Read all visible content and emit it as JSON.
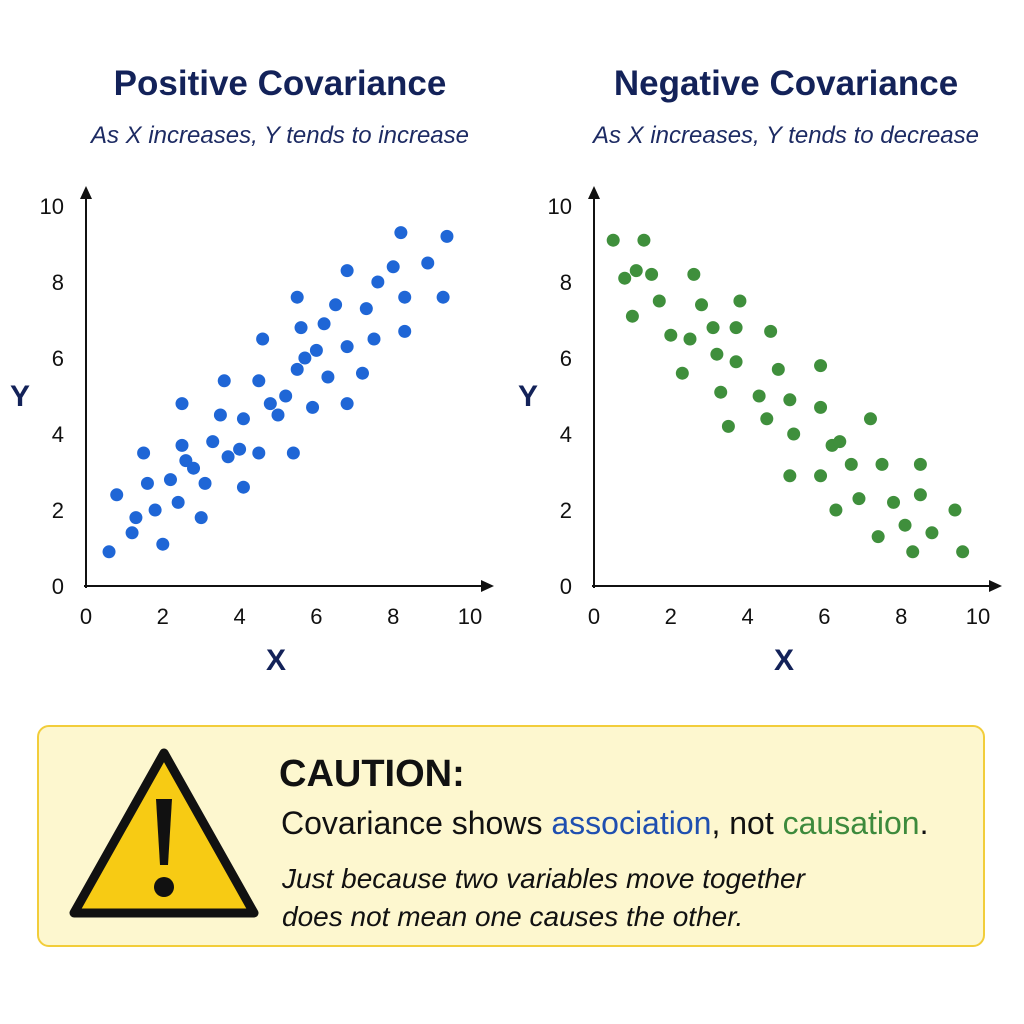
{
  "chart_data": [
    {
      "type": "scatter",
      "title": "Positive Covariance",
      "subtitle": "As X increases, Y tends to increase",
      "xlabel": "X",
      "ylabel": "Y",
      "xlim": [
        0,
        10
      ],
      "ylim": [
        0,
        10
      ],
      "xticks": [
        "0",
        "2",
        "4",
        "6",
        "8",
        "10"
      ],
      "yticks": [
        "0",
        "2",
        "4",
        "6",
        "8",
        "10"
      ],
      "color": "#1f66d6",
      "grid": false,
      "points": [
        [
          0.6,
          0.9
        ],
        [
          0.8,
          2.4
        ],
        [
          1.2,
          1.4
        ],
        [
          1.3,
          1.8
        ],
        [
          1.5,
          3.5
        ],
        [
          1.6,
          2.7
        ],
        [
          1.8,
          2.0
        ],
        [
          2.0,
          1.1
        ],
        [
          2.2,
          2.8
        ],
        [
          2.4,
          2.2
        ],
        [
          2.5,
          4.8
        ],
        [
          2.5,
          3.7
        ],
        [
          2.6,
          3.3
        ],
        [
          2.8,
          3.1
        ],
        [
          3.0,
          1.8
        ],
        [
          3.1,
          2.7
        ],
        [
          3.3,
          3.8
        ],
        [
          3.5,
          4.5
        ],
        [
          3.6,
          5.4
        ],
        [
          3.7,
          3.4
        ],
        [
          4.0,
          3.6
        ],
        [
          4.1,
          4.4
        ],
        [
          4.1,
          2.6
        ],
        [
          4.5,
          5.4
        ],
        [
          4.5,
          3.5
        ],
        [
          4.6,
          6.5
        ],
        [
          4.8,
          4.8
        ],
        [
          5.0,
          4.5
        ],
        [
          5.2,
          5.0
        ],
        [
          5.4,
          3.5
        ],
        [
          5.5,
          7.6
        ],
        [
          5.5,
          5.7
        ],
        [
          5.6,
          6.8
        ],
        [
          5.7,
          6.0
        ],
        [
          5.9,
          4.7
        ],
        [
          6.0,
          6.2
        ],
        [
          6.2,
          6.9
        ],
        [
          6.3,
          5.5
        ],
        [
          6.5,
          7.4
        ],
        [
          6.8,
          8.3
        ],
        [
          6.8,
          6.3
        ],
        [
          6.8,
          4.8
        ],
        [
          7.2,
          5.6
        ],
        [
          7.3,
          7.3
        ],
        [
          7.5,
          6.5
        ],
        [
          7.6,
          8.0
        ],
        [
          8.0,
          8.4
        ],
        [
          8.2,
          9.3
        ],
        [
          8.3,
          6.7
        ],
        [
          8.3,
          7.6
        ],
        [
          8.9,
          8.5
        ],
        [
          9.3,
          7.6
        ],
        [
          9.4,
          9.2
        ]
      ]
    },
    {
      "type": "scatter",
      "title": "Negative Covariance",
      "subtitle": "As X increases, Y tends to decrease",
      "xlabel": "X",
      "ylabel": "Y",
      "xlim": [
        0,
        10
      ],
      "ylim": [
        0,
        10
      ],
      "xticks": [
        "0",
        "2",
        "4",
        "6",
        "8",
        "10"
      ],
      "yticks": [
        "0",
        "2",
        "4",
        "6",
        "8",
        "10"
      ],
      "color": "#3f8f3c",
      "grid": false,
      "points": [
        [
          0.5,
          9.1
        ],
        [
          0.8,
          8.1
        ],
        [
          1.0,
          7.1
        ],
        [
          1.1,
          8.3
        ],
        [
          1.3,
          9.1
        ],
        [
          1.5,
          8.2
        ],
        [
          1.7,
          7.5
        ],
        [
          2.0,
          6.6
        ],
        [
          2.3,
          5.6
        ],
        [
          2.5,
          6.5
        ],
        [
          2.6,
          8.2
        ],
        [
          2.8,
          7.4
        ],
        [
          3.1,
          6.8
        ],
        [
          3.2,
          6.1
        ],
        [
          3.3,
          5.1
        ],
        [
          3.5,
          4.2
        ],
        [
          3.7,
          6.8
        ],
        [
          3.7,
          5.9
        ],
        [
          3.8,
          7.5
        ],
        [
          4.3,
          5.0
        ],
        [
          4.5,
          4.4
        ],
        [
          4.6,
          6.7
        ],
        [
          4.8,
          5.7
        ],
        [
          5.1,
          4.9
        ],
        [
          5.1,
          2.9
        ],
        [
          5.2,
          4.0
        ],
        [
          5.9,
          5.8
        ],
        [
          5.9,
          4.7
        ],
        [
          5.9,
          2.9
        ],
        [
          6.2,
          3.7
        ],
        [
          6.3,
          2.0
        ],
        [
          6.4,
          3.8
        ],
        [
          6.7,
          3.2
        ],
        [
          6.9,
          2.3
        ],
        [
          7.2,
          4.4
        ],
        [
          7.4,
          1.3
        ],
        [
          7.5,
          3.2
        ],
        [
          7.8,
          2.2
        ],
        [
          8.1,
          1.6
        ],
        [
          8.3,
          0.9
        ],
        [
          8.5,
          3.2
        ],
        [
          8.5,
          2.4
        ],
        [
          8.8,
          1.4
        ],
        [
          9.4,
          2.0
        ],
        [
          9.6,
          0.9
        ]
      ]
    }
  ],
  "caution": {
    "title": "CAUTION:",
    "line_prefix": "Covariance shows ",
    "keyword_1": "association",
    "line_mid": ", not ",
    "keyword_2": "causation",
    "line_end": ".",
    "note_line_1": "Just because two variables move together",
    "note_line_2": "does not mean one causes the other.",
    "icon": "warning-triangle-icon",
    "colors": {
      "box_background": "#fdf7cf",
      "box_border": "#f2cd3a",
      "icon_fill": "#f7cb14"
    }
  }
}
